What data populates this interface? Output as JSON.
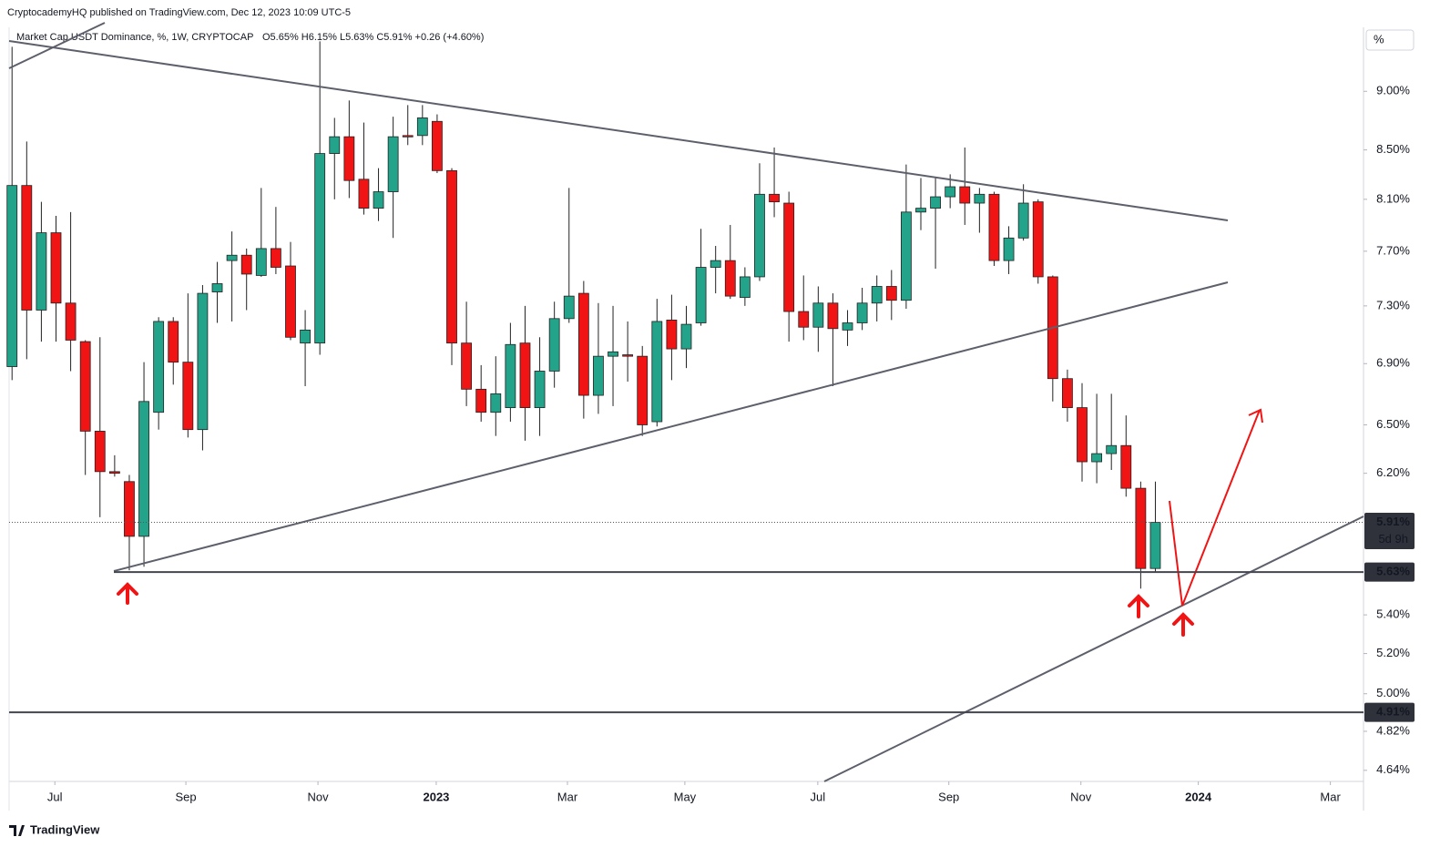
{
  "header": {
    "published": "CryptocademyHQ published on TradingView.com, Dec 12, 2023 10:09 UTC-5",
    "footer": "TradingView"
  },
  "chart_data": {
    "type": "candlestick",
    "title": "Market Cap USDT Dominance, %, 1W, CRYPTOCAP",
    "ohlc_text": "O5.65% H6.15% L5.63% C5.91% +0.26 (+4.60%)",
    "unit": "%",
    "log_scale": true,
    "up_color": "#22a38a",
    "down_color": "#f01414",
    "open": [
      6.88,
      8.21,
      7.27,
      7.84,
      7.32,
      7.05,
      6.46,
      6.21,
      6.15,
      5.83,
      6.58,
      7.19,
      6.91,
      6.47,
      7.4,
      7.63,
      7.67,
      7.52,
      7.72,
      7.59,
      7.04,
      7.04,
      8.47,
      8.61,
      8.26,
      8.03,
      8.16,
      8.62,
      8.62,
      8.74,
      8.33,
      7.04,
      6.73,
      6.58,
      6.61,
      7.04,
      6.61,
      6.85,
      7.21,
      7.39,
      6.69,
      6.95,
      6.96,
      6.95,
      6.52,
      7.2,
      7.0,
      7.18,
      7.58,
      7.63,
      7.36,
      7.51,
      8.14,
      8.07,
      7.26,
      7.15,
      7.32,
      7.13,
      7.18,
      7.32,
      7.44,
      7.34,
      8.0,
      8.03,
      8.12,
      8.2,
      8.07,
      8.14,
      7.63,
      7.8,
      8.08,
      7.51,
      6.8,
      6.61,
      6.27,
      6.32,
      6.37,
      6.11,
      5.65
    ],
    "high": [
      9.4,
      8.57,
      8.08,
      7.97,
      8.0,
      7.06,
      7.08,
      6.31,
      6.19,
      6.91,
      7.22,
      7.22,
      7.39,
      7.45,
      7.62,
      7.85,
      7.72,
      8.19,
      8.04,
      7.77,
      7.27,
      9.45,
      8.77,
      8.92,
      8.73,
      8.35,
      8.78,
      8.88,
      8.88,
      8.8,
      8.35,
      7.33,
      6.89,
      6.95,
      7.18,
      7.3,
      7.08,
      7.33,
      8.19,
      7.48,
      7.32,
      7.3,
      7.19,
      7.02,
      7.35,
      7.38,
      7.3,
      7.87,
      7.74,
      7.9,
      7.58,
      8.39,
      8.52,
      8.16,
      7.52,
      7.44,
      7.39,
      7.27,
      7.43,
      7.52,
      7.56,
      8.38,
      8.27,
      8.27,
      8.3,
      8.52,
      8.19,
      8.16,
      7.89,
      8.22,
      8.1,
      7.52,
      6.86,
      6.77,
      6.7,
      6.7,
      6.56,
      6.15,
      6.15
    ],
    "low": [
      6.79,
      6.93,
      7.05,
      7.05,
      6.85,
      6.19,
      5.94,
      6.18,
      5.64,
      5.66,
      6.47,
      6.76,
      6.42,
      6.34,
      7.18,
      7.19,
      7.27,
      7.51,
      7.53,
      7.06,
      6.75,
      6.96,
      8.1,
      8.11,
      7.98,
      7.93,
      7.8,
      8.54,
      8.54,
      8.31,
      6.89,
      6.62,
      6.52,
      6.43,
      6.52,
      6.4,
      6.43,
      6.74,
      7.18,
      6.54,
      6.57,
      6.62,
      6.78,
      6.43,
      6.49,
      6.79,
      6.87,
      7.16,
      7.39,
      7.35,
      7.3,
      7.48,
      7.96,
      7.05,
      7.06,
      6.98,
      6.75,
      7.02,
      7.13,
      7.19,
      7.2,
      7.28,
      7.86,
      7.57,
      8.03,
      7.9,
      7.84,
      7.59,
      7.53,
      7.78,
      7.46,
      6.65,
      6.52,
      6.15,
      6.14,
      6.22,
      6.06,
      5.54,
      5.63
    ],
    "close": [
      8.21,
      7.27,
      7.84,
      7.32,
      7.06,
      6.46,
      6.21,
      6.2,
      5.83,
      6.65,
      7.19,
      6.91,
      6.47,
      7.39,
      7.46,
      7.67,
      7.53,
      7.72,
      7.58,
      7.08,
      7.13,
      8.47,
      8.61,
      8.25,
      8.03,
      8.16,
      8.61,
      8.61,
      8.77,
      8.33,
      7.04,
      6.73,
      6.58,
      6.7,
      7.03,
      6.61,
      6.85,
      7.21,
      7.37,
      6.69,
      6.95,
      6.98,
      6.95,
      6.5,
      7.19,
      7.0,
      7.17,
      7.58,
      7.63,
      7.37,
      7.51,
      8.14,
      8.08,
      7.26,
      7.15,
      7.32,
      7.14,
      7.18,
      7.32,
      7.44,
      7.34,
      8.0,
      8.03,
      8.12,
      8.2,
      8.07,
      8.14,
      7.63,
      7.8,
      8.07,
      7.51,
      6.8,
      6.61,
      6.27,
      6.32,
      6.37,
      6.11,
      5.65,
      5.91
    ],
    "xlim": [
      -0.2,
      92.2
    ],
    "xticks": [
      {
        "value": 2.92,
        "label": "Jul"
      },
      {
        "value": 11.86,
        "label": "Sep"
      },
      {
        "value": 20.87,
        "label": "Nov"
      },
      {
        "value": 28.94,
        "label": "2023"
      },
      {
        "value": 37.89,
        "label": "Mar"
      },
      {
        "value": 45.9,
        "label": "May"
      },
      {
        "value": 54.97,
        "label": "Jul"
      },
      {
        "value": 63.91,
        "label": "Sep"
      },
      {
        "value": 72.92,
        "label": "Nov"
      },
      {
        "value": 80.93,
        "label": "2024"
      },
      {
        "value": 89.94,
        "label": "Mar"
      }
    ],
    "ylim": [
      4.59,
      9.58
    ],
    "yticks": [
      {
        "value": 9.0,
        "label": "9.00%"
      },
      {
        "value": 8.5,
        "label": "8.50%"
      },
      {
        "value": 8.1,
        "label": "8.10%"
      },
      {
        "value": 7.7,
        "label": "7.70%"
      },
      {
        "value": 7.3,
        "label": "7.30%"
      },
      {
        "value": 6.9,
        "label": "6.90%"
      },
      {
        "value": 6.5,
        "label": "6.50%"
      },
      {
        "value": 6.2,
        "label": "6.20%"
      },
      {
        "value": 5.4,
        "label": "5.40%"
      },
      {
        "value": 5.2,
        "label": "5.20%"
      },
      {
        "value": 5.0,
        "label": "5.00%"
      },
      {
        "value": 4.82,
        "label": "4.82%"
      },
      {
        "value": 4.64,
        "label": "4.64%"
      }
    ],
    "price_lines": [
      {
        "value": 5.91,
        "label": "5.91%",
        "countdown": "5d 9h",
        "style": "dotted"
      },
      {
        "value": 5.63,
        "label": "5.63%",
        "style": "solid"
      },
      {
        "value": 4.91,
        "label": "4.91%",
        "style": "solid"
      }
    ]
  }
}
